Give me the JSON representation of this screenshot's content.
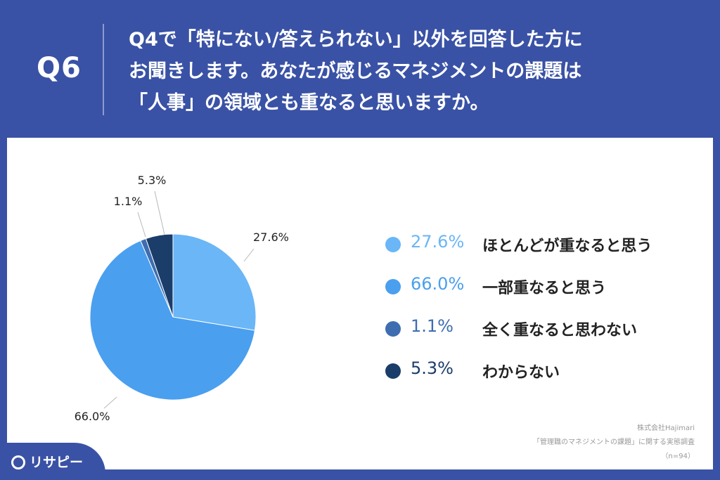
{
  "header": {
    "q_label": "Q6",
    "question_lines": [
      "Q4で「特にない/答えられない」以外を回答した方に",
      "お聞きします。あなたが感じるマネジメントの課題は",
      "「人事」の領域とも重なると思いますか。"
    ]
  },
  "chart_data": {
    "type": "pie",
    "slices": [
      {
        "label": "ほとんどが重なると思う",
        "value": 27.6,
        "display": "27.6%",
        "color": "#6ab6f7"
      },
      {
        "label": "一部重なると思う",
        "value": 66.0,
        "display": "66.0%",
        "color": "#4a9fef"
      },
      {
        "label": "全く重なると思わない",
        "value": 1.1,
        "display": "1.1%",
        "color": "#3e6db0"
      },
      {
        "label": "わからない",
        "value": 5.3,
        "display": "5.3%",
        "color": "#1b3d6a"
      }
    ]
  },
  "credit": {
    "lines": [
      "株式会社Hajimari",
      "「管理職のマネジメントの課題」に関する実態調査",
      "（n=94）"
    ]
  },
  "logo": {
    "text": "リサピー"
  }
}
